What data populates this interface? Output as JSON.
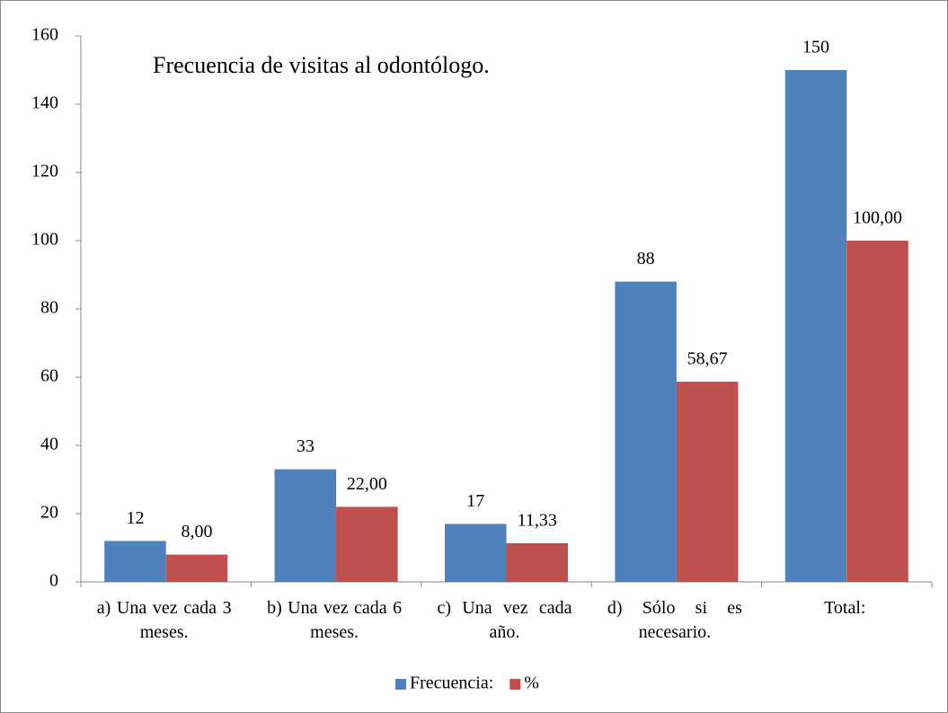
{
  "chart_data": {
    "type": "bar",
    "title": "Frecuencia de visitas al odontólogo.",
    "categories": [
      "a) Una vez cada 3 meses.",
      "b) Una vez cada 6 meses.",
      "c) Una vez cada año.",
      "d) Sólo si es necesario.",
      "Total:"
    ],
    "series": [
      {
        "name": "Frecuencia:",
        "color": "#4f81bd",
        "values": [
          12,
          33,
          17,
          88,
          150
        ]
      },
      {
        "name": "%",
        "color": "#c0504d",
        "values": [
          8,
          22,
          11.33,
          58.67,
          100
        ],
        "value_labels": [
          "8,00",
          "22,00",
          "11,33",
          "58,67",
          "100,00"
        ]
      }
    ],
    "ylim": [
      0,
      160
    ],
    "yticks": [
      0,
      20,
      40,
      60,
      80,
      100,
      120,
      140,
      160
    ],
    "grid": false,
    "legend": "bottom"
  }
}
